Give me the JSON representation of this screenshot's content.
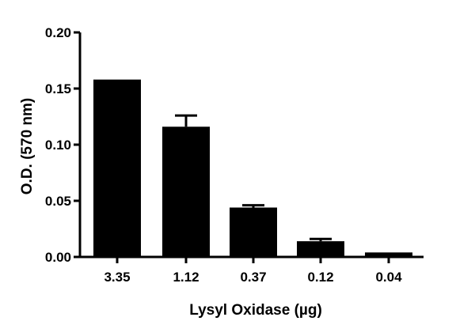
{
  "chart_data": {
    "type": "bar",
    "title": "",
    "xlabel": "Lysyl Oxidase (µg)",
    "ylabel": "O.D. (570 nm)",
    "categories": [
      "3.35",
      "1.12",
      "0.37",
      "0.12",
      "0.04"
    ],
    "values": [
      0.158,
      0.116,
      0.044,
      0.014,
      0.004
    ],
    "error": [
      0.0,
      0.01,
      0.002,
      0.002,
      0.0
    ],
    "ylim": [
      0,
      0.2
    ],
    "yticks": [
      0.0,
      0.05,
      0.1,
      0.15,
      0.2
    ],
    "ytick_labels": [
      "0.00",
      "0.05",
      "0.10",
      "0.15",
      "0.20"
    ],
    "grid": false,
    "legend": "none",
    "bar_color": "#000000"
  }
}
